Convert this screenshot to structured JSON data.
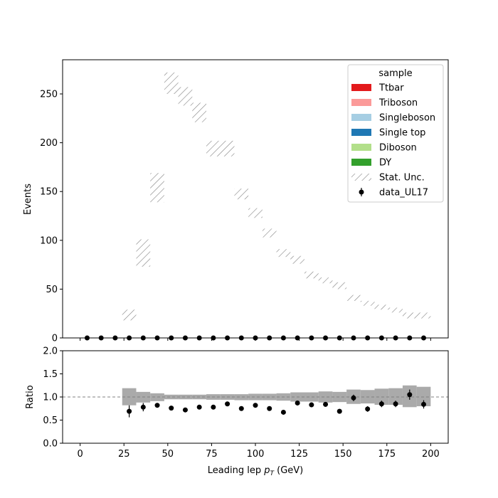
{
  "chart_data": [
    {
      "type": "histogram-stack",
      "panel": "main",
      "xlim": [
        -10,
        210
      ],
      "ylim": [
        0,
        285
      ],
      "ylabel": "Events",
      "yticks": [
        0,
        50,
        100,
        150,
        200,
        250
      ],
      "xticks": [
        0,
        25,
        50,
        75,
        100,
        125,
        150,
        175,
        200
      ],
      "legend": {
        "title": "sample",
        "placement": "top-right",
        "entries": [
          {
            "name": "Ttbar",
            "kind": "patch",
            "color": "#e31a1c"
          },
          {
            "name": "Triboson",
            "kind": "patch",
            "color": "#fb9a99"
          },
          {
            "name": "Singleboson",
            "kind": "patch",
            "color": "#a6cee3"
          },
          {
            "name": "Single top",
            "kind": "patch",
            "color": "#1f78b4"
          },
          {
            "name": "Diboson",
            "kind": "patch",
            "color": "#b2df8a"
          },
          {
            "name": "DY",
            "kind": "patch",
            "color": "#33a02c"
          },
          {
            "name": "Stat. Unc.",
            "kind": "hatch",
            "color": "#808080"
          },
          {
            "name": "data_UL17",
            "kind": "errorbar",
            "color": "#000000"
          }
        ]
      },
      "stat_unc_bins": [
        {
          "x0": 24,
          "x1": 32,
          "lo": 18,
          "hi": 29
        },
        {
          "x0": 32,
          "x1": 40,
          "lo": 73,
          "hi": 101
        },
        {
          "x0": 40,
          "x1": 48,
          "lo": 139,
          "hi": 169
        },
        {
          "x0": 48,
          "x1": 56,
          "lo": 250,
          "hi": 272
        },
        {
          "x0": 56,
          "x1": 64,
          "lo": 238,
          "hi": 257
        },
        {
          "x0": 64,
          "x1": 72,
          "lo": 221,
          "hi": 241
        },
        {
          "x0": 72,
          "x1": 80,
          "lo": 186,
          "hi": 202
        },
        {
          "x0": 80,
          "x1": 88,
          "lo": 186,
          "hi": 202
        },
        {
          "x0": 88,
          "x1": 96,
          "lo": 142,
          "hi": 153
        },
        {
          "x0": 96,
          "x1": 104,
          "lo": 123,
          "hi": 133
        },
        {
          "x0": 104,
          "x1": 112,
          "lo": 103,
          "hi": 112
        },
        {
          "x0": 112,
          "x1": 120,
          "lo": 83,
          "hi": 91
        },
        {
          "x0": 120,
          "x1": 128,
          "lo": 76,
          "hi": 84
        },
        {
          "x0": 128,
          "x1": 136,
          "lo": 61,
          "hi": 68
        },
        {
          "x0": 136,
          "x1": 144,
          "lo": 56,
          "hi": 62
        },
        {
          "x0": 144,
          "x1": 152,
          "lo": 50,
          "hi": 57
        },
        {
          "x0": 152,
          "x1": 160,
          "lo": 38,
          "hi": 44
        },
        {
          "x0": 160,
          "x1": 168,
          "lo": 33,
          "hi": 38
        },
        {
          "x0": 168,
          "x1": 176,
          "lo": 29,
          "hi": 34
        },
        {
          "x0": 176,
          "x1": 184,
          "lo": 26,
          "hi": 31
        },
        {
          "x0": 184,
          "x1": 192,
          "lo": 20,
          "hi": 26
        },
        {
          "x0": 192,
          "x1": 200,
          "lo": 20,
          "hi": 26
        }
      ],
      "data_points": {
        "x": [
          4,
          12,
          20,
          28,
          36,
          44,
          52,
          60,
          68,
          76,
          84,
          92,
          100,
          108,
          116,
          124,
          132,
          140,
          148,
          156,
          164,
          172,
          180,
          188,
          196
        ],
        "y": [
          0,
          0,
          0,
          0,
          0,
          0,
          0,
          0,
          0,
          0,
          0,
          0,
          0,
          0,
          0,
          0,
          0,
          0,
          0,
          0,
          0,
          0,
          0,
          0,
          0
        ]
      }
    },
    {
      "type": "ratio",
      "panel": "ratio",
      "xlim": [
        -10,
        210
      ],
      "ylim": [
        0,
        2
      ],
      "ylabel": "Ratio",
      "xlabel_prefix": "Leading lep ",
      "xlabel_var": "p",
      "xlabel_sub": "T",
      "xlabel_suffix": " (GeV)",
      "yticks": [
        "0.0",
        "0.5",
        "1.0",
        "1.5",
        "2.0"
      ],
      "xticks": [
        0,
        25,
        50,
        75,
        100,
        125,
        150,
        175,
        200
      ],
      "reference_line": 1.0,
      "unc_band": [
        {
          "x0": 24,
          "x1": 32,
          "lo": 0.82,
          "hi": 1.19
        },
        {
          "x0": 32,
          "x1": 40,
          "lo": 0.88,
          "hi": 1.11
        },
        {
          "x0": 40,
          "x1": 48,
          "lo": 0.91,
          "hi": 1.08
        },
        {
          "x0": 48,
          "x1": 56,
          "lo": 0.95,
          "hi": 1.05
        },
        {
          "x0": 56,
          "x1": 64,
          "lo": 0.95,
          "hi": 1.05
        },
        {
          "x0": 64,
          "x1": 72,
          "lo": 0.95,
          "hi": 1.05
        },
        {
          "x0": 72,
          "x1": 80,
          "lo": 0.94,
          "hi": 1.06
        },
        {
          "x0": 80,
          "x1": 88,
          "lo": 0.94,
          "hi": 1.06
        },
        {
          "x0": 88,
          "x1": 96,
          "lo": 0.93,
          "hi": 1.06
        },
        {
          "x0": 96,
          "x1": 104,
          "lo": 0.93,
          "hi": 1.07
        },
        {
          "x0": 104,
          "x1": 112,
          "lo": 0.93,
          "hi": 1.07
        },
        {
          "x0": 112,
          "x1": 120,
          "lo": 0.92,
          "hi": 1.08
        },
        {
          "x0": 120,
          "x1": 128,
          "lo": 0.9,
          "hi": 1.1
        },
        {
          "x0": 128,
          "x1": 136,
          "lo": 0.9,
          "hi": 1.1
        },
        {
          "x0": 136,
          "x1": 144,
          "lo": 0.88,
          "hi": 1.12
        },
        {
          "x0": 144,
          "x1": 152,
          "lo": 0.89,
          "hi": 1.11
        },
        {
          "x0": 152,
          "x1": 160,
          "lo": 0.85,
          "hi": 1.16
        },
        {
          "x0": 160,
          "x1": 168,
          "lo": 0.86,
          "hi": 1.15
        },
        {
          "x0": 168,
          "x1": 176,
          "lo": 0.83,
          "hi": 1.18
        },
        {
          "x0": 176,
          "x1": 184,
          "lo": 0.83,
          "hi": 1.19
        },
        {
          "x0": 184,
          "x1": 192,
          "lo": 0.78,
          "hi": 1.25
        },
        {
          "x0": 192,
          "x1": 200,
          "lo": 0.8,
          "hi": 1.22
        }
      ],
      "points": [
        {
          "x": 28,
          "y": 0.69,
          "err": 0.13
        },
        {
          "x": 36,
          "y": 0.78,
          "err": 0.09
        },
        {
          "x": 44,
          "y": 0.82,
          "err": 0.05
        },
        {
          "x": 52,
          "y": 0.76,
          "err": 0.03
        },
        {
          "x": 60,
          "y": 0.72,
          "err": 0.03
        },
        {
          "x": 68,
          "y": 0.78,
          "err": 0.03
        },
        {
          "x": 76,
          "y": 0.78,
          "err": 0.03
        },
        {
          "x": 84,
          "y": 0.85,
          "err": 0.03
        },
        {
          "x": 92,
          "y": 0.75,
          "err": 0.04
        },
        {
          "x": 100,
          "y": 0.82,
          "err": 0.04
        },
        {
          "x": 108,
          "y": 0.75,
          "err": 0.04
        },
        {
          "x": 116,
          "y": 0.67,
          "err": 0.04
        },
        {
          "x": 124,
          "y": 0.87,
          "err": 0.05
        },
        {
          "x": 132,
          "y": 0.83,
          "err": 0.05
        },
        {
          "x": 140,
          "y": 0.84,
          "err": 0.05
        },
        {
          "x": 148,
          "y": 0.69,
          "err": 0.05
        },
        {
          "x": 156,
          "y": 0.98,
          "err": 0.07
        },
        {
          "x": 164,
          "y": 0.74,
          "err": 0.06
        },
        {
          "x": 172,
          "y": 0.85,
          "err": 0.07
        },
        {
          "x": 180,
          "y": 0.85,
          "err": 0.07
        },
        {
          "x": 188,
          "y": 1.05,
          "err": 0.11
        },
        {
          "x": 196,
          "y": 0.84,
          "err": 0.09
        }
      ]
    }
  ]
}
